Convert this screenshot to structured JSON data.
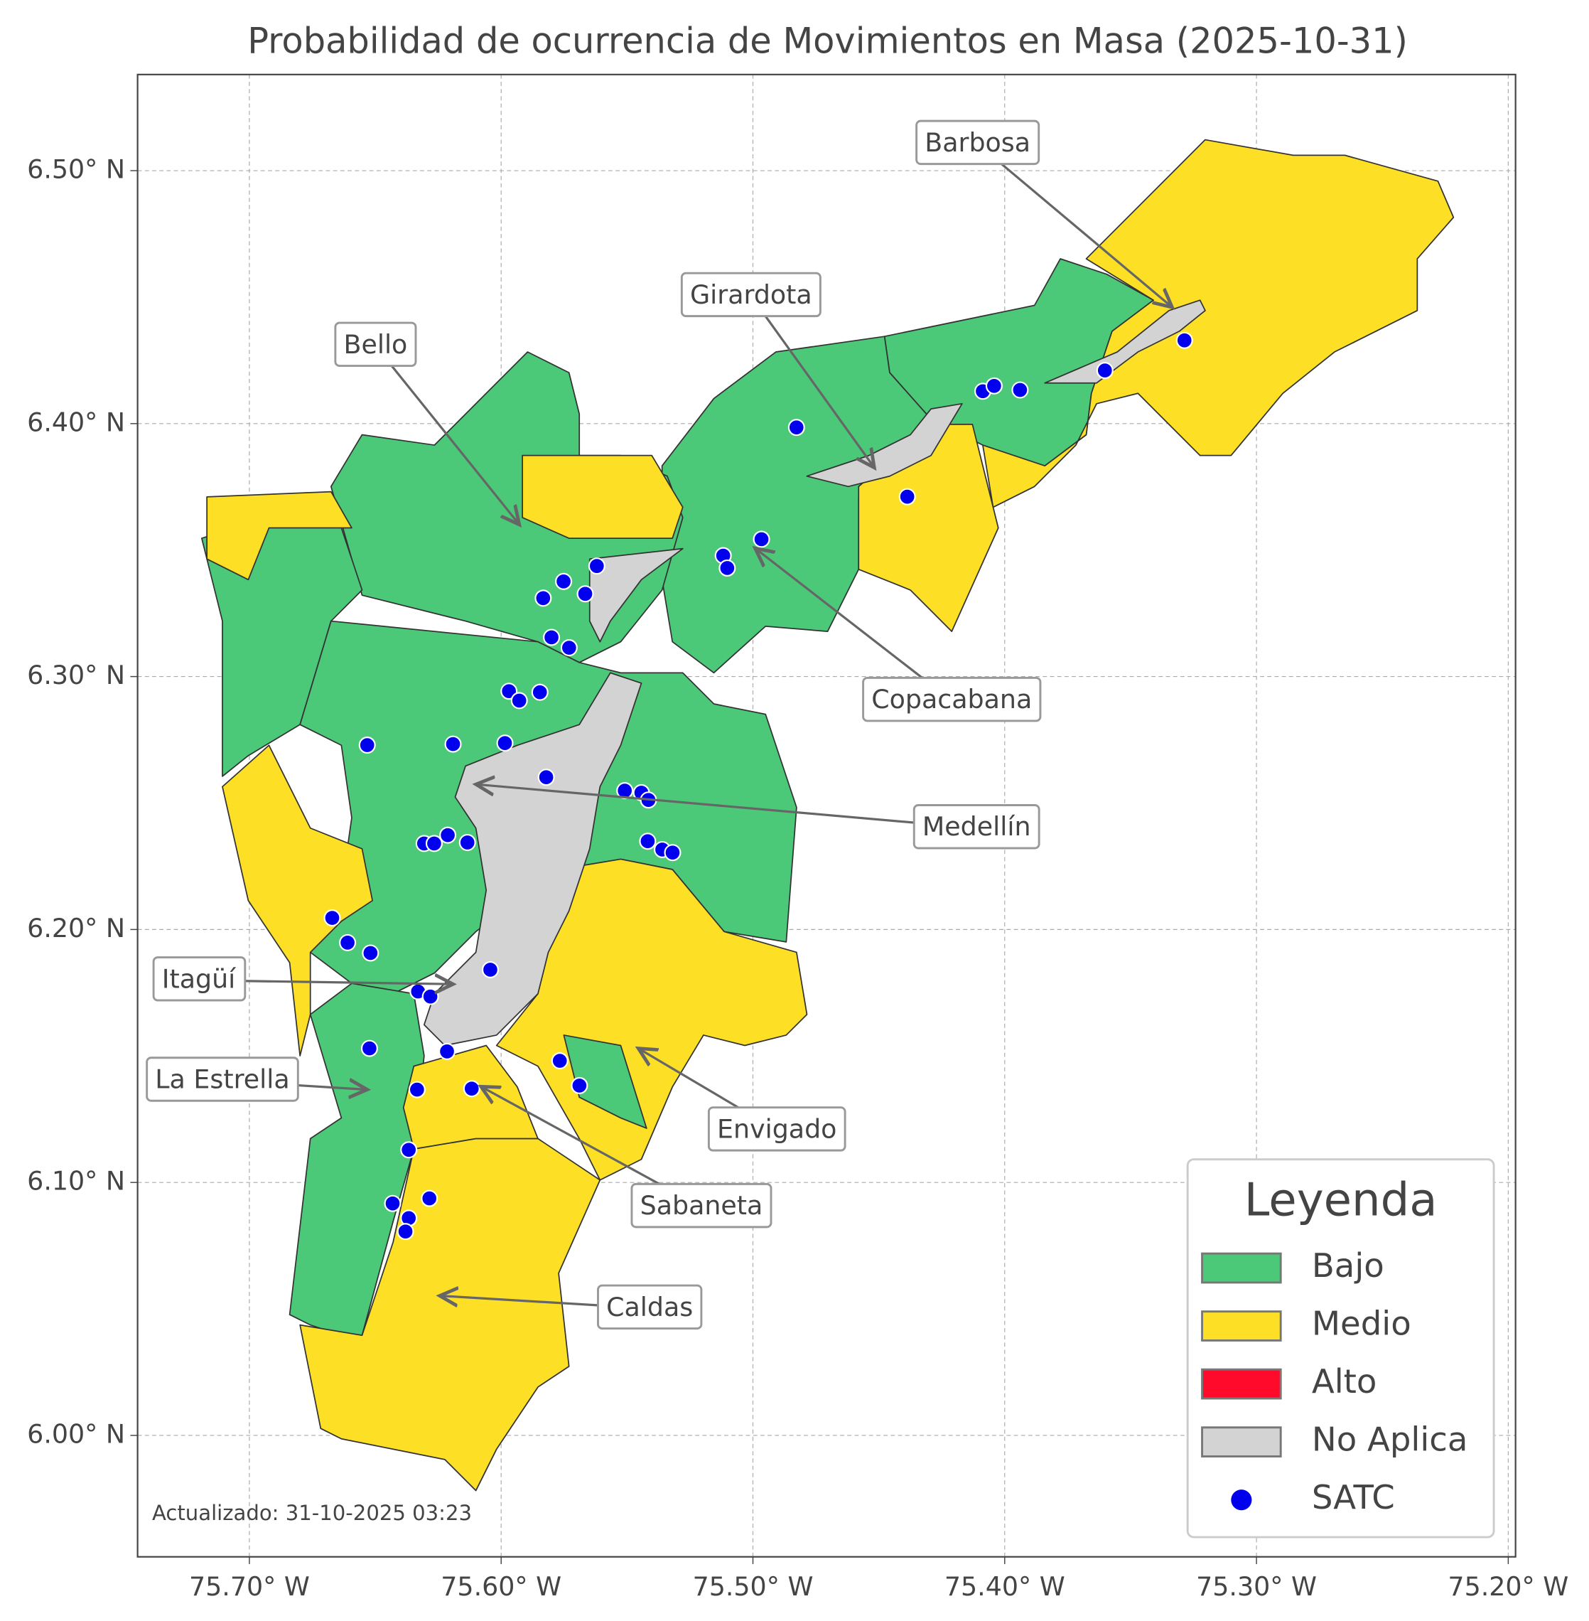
{
  "chart_data": {
    "type": "map",
    "title": "Probabilidad de ocurrencia de Movimientos en Masa (2025-10-31)",
    "xlim": [
      -75.7444,
      -75.1971
    ],
    "ylim": [
      5.952,
      6.538
    ],
    "xticks": [
      {
        "value": -75.7,
        "label": "75.70° W"
      },
      {
        "value": -75.6,
        "label": "75.60° W"
      },
      {
        "value": -75.5,
        "label": "75.50° W"
      },
      {
        "value": -75.4,
        "label": "75.40° W"
      },
      {
        "value": -75.3,
        "label": "75.30° W"
      },
      {
        "value": -75.2,
        "label": "75.20° W"
      }
    ],
    "yticks": [
      {
        "value": 6.0,
        "label": "6.00° N"
      },
      {
        "value": 6.1,
        "label": "6.10° N"
      },
      {
        "value": 6.2,
        "label": "6.20° N"
      },
      {
        "value": 6.3,
        "label": "6.30° N"
      },
      {
        "value": 6.4,
        "label": "6.40° N"
      },
      {
        "value": 6.5,
        "label": "6.50° N"
      }
    ],
    "grid": true,
    "legend": {
      "title": "Leyenda",
      "position": "lower right",
      "items": [
        {
          "label": "Bajo",
          "color": "#4bc878"
        },
        {
          "label": "Medio",
          "color": "#fde026"
        },
        {
          "label": "Alto",
          "color": "#ff0a2a"
        },
        {
          "label": "No Aplica",
          "color": "#d3d3d3"
        }
      ]
    },
    "satc": {
      "name": "SATC",
      "color": "#0000ee",
      "lon": [
        -75.3286,
        -75.3602,
        -75.4087,
        -75.4042,
        -75.3939,
        -75.4827,
        -75.4387,
        -75.4966,
        -75.5118,
        -75.5102,
        -75.562,
        -75.5752,
        -75.5666,
        -75.5833,
        -75.58,
        -75.573,
        -75.5969,
        -75.5928,
        -75.5846,
        -75.6532,
        -75.6191,
        -75.5985,
        -75.5821,
        -75.5509,
        -75.5443,
        -75.5415,
        -75.6306,
        -75.6266,
        -75.6212,
        -75.6134,
        -75.5418,
        -75.536,
        -75.5319,
        -75.6671,
        -75.661,
        -75.6519,
        -75.6043,
        -75.633,
        -75.6281,
        -75.6523,
        -75.6215,
        -75.5767,
        -75.5689,
        -75.6334,
        -75.6117,
        -75.6367,
        -75.6431,
        -75.6285,
        -75.6367,
        -75.638
      ],
      "lat": [
        6.4329,
        6.421,
        6.4128,
        6.4149,
        6.4133,
        6.3985,
        6.3711,
        6.3543,
        6.3478,
        6.3429,
        6.3437,
        6.3376,
        6.3327,
        6.331,
        6.3155,
        6.3114,
        6.2942,
        6.2905,
        6.2938,
        6.2729,
        6.2733,
        6.2737,
        6.2602,
        6.2549,
        6.2541,
        6.2512,
        6.234,
        6.234,
        6.2373,
        6.2344,
        6.2349,
        6.2316,
        6.2304,
        6.2046,
        6.1948,
        6.1907,
        6.1841,
        6.1755,
        6.1735,
        6.153,
        6.1518,
        6.1481,
        6.1383,
        6.1367,
        6.1371,
        6.1129,
        6.0917,
        6.0937,
        6.0859,
        6.0806
      ]
    },
    "annotations": [
      {
        "text": "Barbosa",
        "lon": -75.3335,
        "lat": 6.446
      },
      {
        "text": "Girardota",
        "lon": -75.4518,
        "lat": 6.3826
      },
      {
        "text": "Bello",
        "lon": -75.5928,
        "lat": 6.3601
      },
      {
        "text": "Copacabana",
        "lon": -75.4991,
        "lat": 6.3507
      },
      {
        "text": "Medellín",
        "lon": -75.61,
        "lat": 6.2574
      },
      {
        "text": "Itagüí",
        "lon": -75.6191,
        "lat": 6.1784
      },
      {
        "text": "La Estrella",
        "lon": -75.6532,
        "lat": 6.1367
      },
      {
        "text": "Sabaneta",
        "lon": -75.608,
        "lat": 6.1379
      },
      {
        "text": "Envigado",
        "lon": -75.5455,
        "lat": 6.153
      },
      {
        "text": "Caldas",
        "lon": -75.6244,
        "lat": 6.0552
      }
    ],
    "footnote": "Actualizado: 31-10-2025 03:23"
  }
}
